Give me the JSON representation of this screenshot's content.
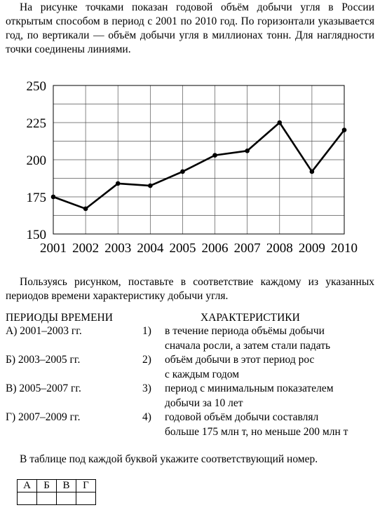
{
  "intro": "На рисунке точками показан годовой объём добычи угля в России открытым способом в период с 2001 по 2010 год. По горизонтали указывается год, по вертикали — объём добычи угля в миллионах тонн. Для наглядности точки соединены линиями.",
  "chart_data": {
    "type": "line",
    "categories": [
      "2001",
      "2002",
      "2003",
      "2004",
      "2005",
      "2006",
      "2007",
      "2008",
      "2009",
      "2010"
    ],
    "values": [
      175,
      167,
      184,
      182.5,
      192,
      203,
      206,
      225,
      192,
      220
    ],
    "color": "#000000",
    "ylim": [
      150,
      250
    ],
    "yticks": [
      150,
      175,
      200,
      225,
      250
    ],
    "ygrid": [
      150,
      162.5,
      175,
      187.5,
      200,
      212.5,
      225,
      237.5,
      250
    ],
    "grid": true
  },
  "question": "Пользуясь рисунком, поставьте в соответствие каждому из указанных периодов времени характеристику добычи угля.",
  "periods": {
    "header": "ПЕРИОДЫ ВРЕМЕНИ",
    "items": [
      "А) 2001–2003 гг.",
      "Б) 2003–2005 гг.",
      "В) 2005–2007 гг.",
      "Г) 2007–2009 гг."
    ]
  },
  "characteristics": {
    "header": "ХАРАКТЕРИСТИКИ",
    "items": [
      {
        "number": "1)",
        "lines": [
          "в течение периода объёмы добычи",
          "сначала росли, а затем стали падать"
        ]
      },
      {
        "number": "2)",
        "lines": [
          "объём добычи в этот период рос",
          "с каждым годом"
        ]
      },
      {
        "number": "3)",
        "lines": [
          "период с минимальным показателем",
          "добычи за 10 лет"
        ]
      },
      {
        "number": "4)",
        "lines": [
          "годовой объём добычи составлял",
          "больше 175 млн т, но меньше 200 млн т"
        ]
      }
    ]
  },
  "instruction": "В таблице под каждой буквой укажите соответствующий номер.",
  "table": {
    "header": [
      "А",
      "Б",
      "В",
      "Г"
    ]
  }
}
